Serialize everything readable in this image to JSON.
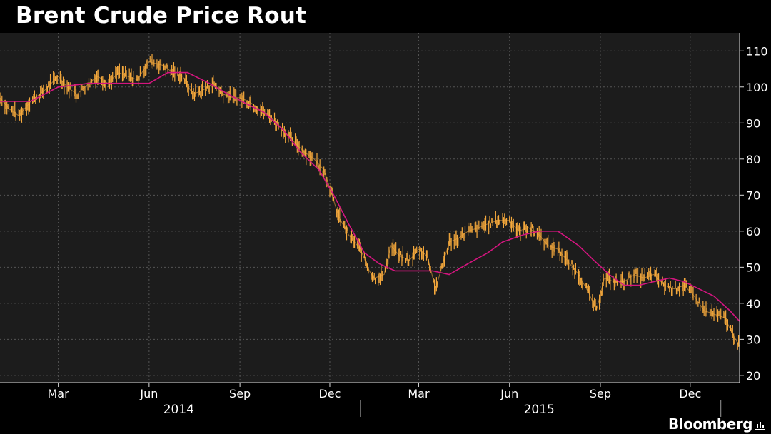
{
  "header": {
    "title": "Brent Crude Price Rout"
  },
  "footer": {
    "brand": "Bloomberg"
  },
  "colors": {
    "background": "#000000",
    "plot_bg": "#1c1c1c",
    "grid": "#555555",
    "price": "#f4a83c",
    "moving_average": "#d4157f"
  },
  "chart_data": {
    "type": "line",
    "title": "Brent Crude Price Rout",
    "xlabel": "",
    "ylabel": "",
    "ylim": [
      18,
      115
    ],
    "yticks": [
      20,
      30,
      40,
      50,
      60,
      70,
      80,
      90,
      100,
      110
    ],
    "x_range": [
      "2014-01-01",
      "2016-01-20"
    ],
    "xticks": [
      {
        "label": "Mar",
        "date": "2014-03-01"
      },
      {
        "label": "Jun",
        "date": "2014-06-01"
      },
      {
        "label": "Sep",
        "date": "2014-09-01"
      },
      {
        "label": "Dec",
        "date": "2014-12-01"
      },
      {
        "label": "Mar",
        "date": "2015-03-01"
      },
      {
        "label": "Jun",
        "date": "2015-06-01"
      },
      {
        "label": "Sep",
        "date": "2015-09-01"
      },
      {
        "label": "Dec",
        "date": "2015-12-01"
      }
    ],
    "year_labels": [
      {
        "label": "2014",
        "date": "2014-07-01"
      },
      {
        "label": "2015",
        "date": "2015-07-01"
      }
    ],
    "year_dividers": [
      "2015-01-01",
      "2016-01-01"
    ],
    "grid": true,
    "axis_side": "right",
    "series": [
      {
        "style": "daily-bars",
        "x": [
          "2014-01-01",
          "2014-01-10",
          "2014-01-20",
          "2014-02-01",
          "2014-02-15",
          "2014-03-01",
          "2014-03-10",
          "2014-03-20",
          "2014-04-01",
          "2014-04-10",
          "2014-04-20",
          "2014-05-01",
          "2014-05-10",
          "2014-05-20",
          "2014-06-01",
          "2014-06-15",
          "2014-06-25",
          "2014-07-05",
          "2014-07-15",
          "2014-07-25",
          "2014-08-05",
          "2014-08-15",
          "2014-08-25",
          "2014-09-01",
          "2014-09-10",
          "2014-09-20",
          "2014-10-01",
          "2014-10-15",
          "2014-10-25",
          "2014-11-05",
          "2014-11-15",
          "2014-11-25",
          "2014-12-01",
          "2014-12-10",
          "2014-12-20",
          "2015-01-01",
          "2015-01-10",
          "2015-01-15",
          "2015-01-25",
          "2015-02-01",
          "2015-02-10",
          "2015-02-20",
          "2015-03-01",
          "2015-03-10",
          "2015-03-18",
          "2015-04-01",
          "2015-04-10",
          "2015-04-20",
          "2015-05-01",
          "2015-05-10",
          "2015-05-20",
          "2015-06-01",
          "2015-06-10",
          "2015-06-20",
          "2015-07-01",
          "2015-07-10",
          "2015-07-20",
          "2015-08-01",
          "2015-08-10",
          "2015-08-20",
          "2015-08-28",
          "2015-09-05",
          "2015-09-15",
          "2015-09-25",
          "2015-10-05",
          "2015-10-15",
          "2015-10-25",
          "2015-11-05",
          "2015-11-15",
          "2015-11-25",
          "2015-12-05",
          "2015-12-15",
          "2015-12-25",
          "2016-01-05",
          "2016-01-12",
          "2016-01-20"
        ],
        "values": [
          97,
          94,
          92,
          96,
          99,
          103,
          100,
          98,
          101,
          103,
          101,
          104,
          103,
          102,
          107,
          106,
          104,
          103,
          98,
          99,
          101,
          98,
          97,
          97,
          96,
          94,
          92,
          88,
          85,
          82,
          80,
          77,
          72,
          64,
          59,
          55,
          49,
          47,
          48,
          56,
          53,
          52,
          55,
          53,
          44,
          57,
          58,
          60,
          61,
          62,
          63,
          63,
          60,
          61,
          59,
          56,
          55,
          51,
          48,
          43,
          38,
          47,
          46,
          46,
          48,
          47,
          48,
          45,
          44,
          45,
          42,
          38,
          37,
          36,
          32,
          28
        ]
      },
      {
        "style": "moving-average",
        "x": [
          "2014-01-01",
          "2014-02-01",
          "2014-03-01",
          "2014-04-01",
          "2014-05-01",
          "2014-06-01",
          "2014-06-20",
          "2014-07-10",
          "2014-08-01",
          "2014-08-20",
          "2014-09-10",
          "2014-09-25",
          "2014-10-15",
          "2014-11-01",
          "2014-11-20",
          "2014-12-05",
          "2014-12-20",
          "2015-01-05",
          "2015-01-20",
          "2015-02-05",
          "2015-02-25",
          "2015-03-15",
          "2015-04-01",
          "2015-04-20",
          "2015-05-10",
          "2015-05-25",
          "2015-06-15",
          "2015-07-01",
          "2015-07-20",
          "2015-08-10",
          "2015-08-25",
          "2015-09-10",
          "2015-09-25",
          "2015-10-10",
          "2015-10-25",
          "2015-11-10",
          "2015-11-25",
          "2015-12-10",
          "2015-12-25",
          "2016-01-10",
          "2016-01-20"
        ],
        "values": [
          96,
          96,
          100,
          101,
          101,
          101,
          104,
          104,
          101,
          98,
          95,
          93,
          88,
          82,
          77,
          70,
          62,
          54,
          51,
          49,
          49,
          49,
          48,
          51,
          54,
          57,
          59,
          60,
          60,
          56,
          52,
          48,
          45,
          45,
          46,
          47,
          46,
          44,
          42,
          38,
          35
        ]
      }
    ]
  }
}
